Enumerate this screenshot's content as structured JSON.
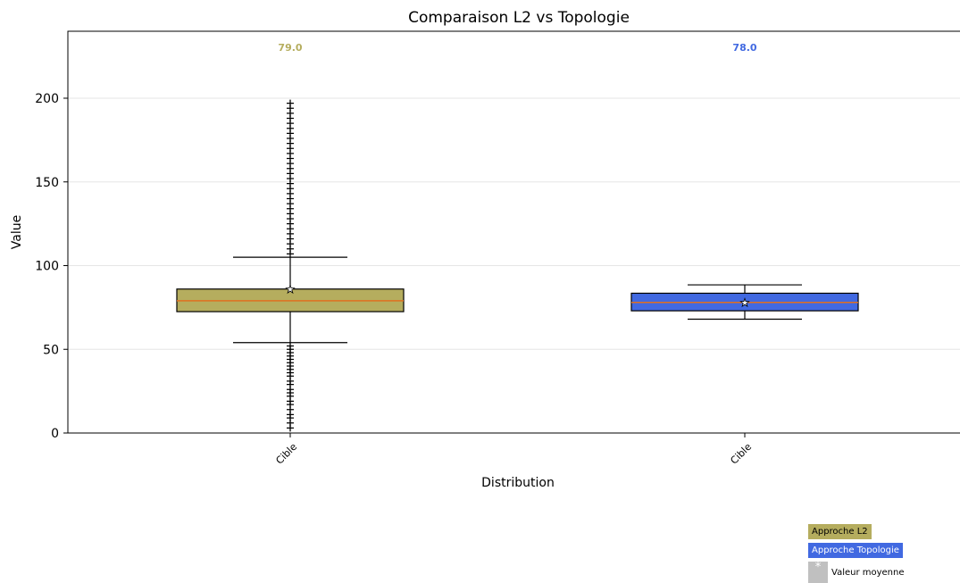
{
  "chart_data": {
    "type": "boxplot",
    "title": "Comparaison L2 vs Topologie",
    "xlabel": "Distribution",
    "ylabel": "Value",
    "ylim": [
      0,
      240
    ],
    "yticks": [
      0,
      50,
      100,
      150,
      200
    ],
    "grid": "horizontal",
    "categories": [
      "Cible",
      "Cible"
    ],
    "series": [
      {
        "name": "Approche L2",
        "color": "#b5ad5e",
        "median_label": "79.0",
        "label_color": "#b5ad5e",
        "q1": 72.5,
        "median": 79,
        "q3": 86,
        "whisker_low": 54,
        "whisker_high": 105,
        "mean": 86,
        "outliers": [
          3,
          6,
          9,
          11,
          14,
          17,
          19,
          22,
          24,
          26,
          29,
          31,
          34,
          36,
          38,
          40,
          42,
          44,
          46,
          48,
          50,
          52,
          107,
          110,
          113,
          116,
          119,
          122,
          125,
          128,
          131,
          134,
          137,
          140,
          143,
          146,
          149,
          152,
          155,
          158,
          161,
          164,
          167,
          170,
          173,
          176,
          179,
          182,
          185,
          188,
          191,
          194,
          197
        ]
      },
      {
        "name": "Approche Topologie",
        "color": "#4169e1",
        "median_label": "78.0",
        "label_color": "#4169e1",
        "q1": 73,
        "median": 78,
        "q3": 83.5,
        "whisker_low": 68,
        "whisker_high": 88.5,
        "mean": 78,
        "outliers": []
      }
    ],
    "median_line_color": "#e07020",
    "legend": {
      "position": "bottom-right",
      "items": [
        {
          "label": "Approche L2",
          "color": "#b5ad5e"
        },
        {
          "label": "Approche Topologie",
          "color": "#4169e1"
        },
        {
          "label": "Valeur moyenne",
          "color": "#c0c0c0",
          "marker": "*"
        }
      ]
    }
  }
}
